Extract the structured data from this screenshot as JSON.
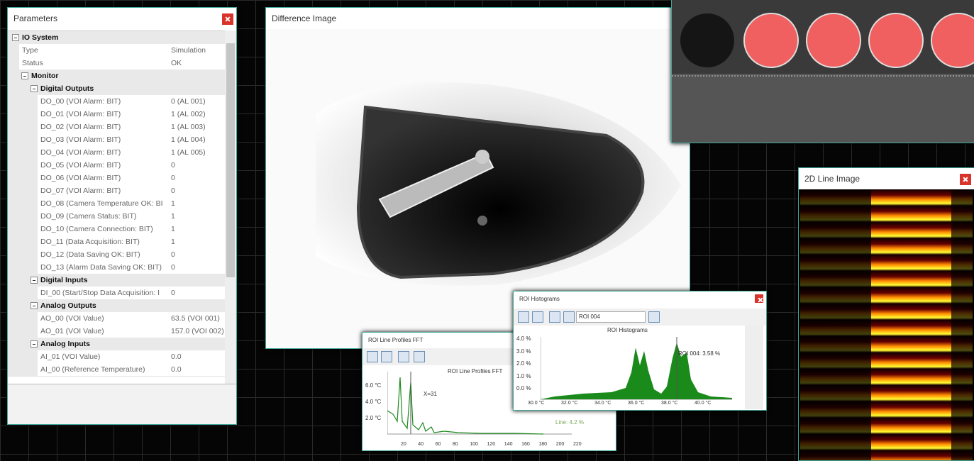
{
  "parameters": {
    "title": "Parameters",
    "tree": {
      "label": "IO System",
      "items": [
        {
          "name": "Type",
          "value": "Simulation"
        },
        {
          "name": "Status",
          "value": "OK"
        }
      ],
      "children": [
        {
          "label": "Monitor",
          "children": [
            {
              "label": "Digital Outputs",
              "items": [
                {
                  "name": "DO_00 (VOI Alarm: BIT)",
                  "value": "0 (AL 001)"
                },
                {
                  "name": "DO_01 (VOI Alarm: BIT)",
                  "value": "1 (AL 002)"
                },
                {
                  "name": "DO_02 (VOI Alarm: BIT)",
                  "value": "1 (AL 003)"
                },
                {
                  "name": "DO_03 (VOI Alarm: BIT)",
                  "value": "1 (AL 004)"
                },
                {
                  "name": "DO_04 (VOI Alarm: BIT)",
                  "value": "1 (AL 005)"
                },
                {
                  "name": "DO_05 (VOI Alarm: BIT)",
                  "value": "0"
                },
                {
                  "name": "DO_06 (VOI Alarm: BIT)",
                  "value": "0"
                },
                {
                  "name": "DO_07 (VOI Alarm: BIT)",
                  "value": "0"
                },
                {
                  "name": "DO_08 (Camera Temperature OK: BI",
                  "value": "1"
                },
                {
                  "name": "DO_09 (Camera Status: BIT)",
                  "value": "1"
                },
                {
                  "name": "DO_10 (Camera Connection: BIT)",
                  "value": "1"
                },
                {
                  "name": "DO_11 (Data Acquisition: BIT)",
                  "value": "1"
                },
                {
                  "name": "DO_12 (Data Saving OK: BIT)",
                  "value": "0"
                },
                {
                  "name": "DO_13 (Alarm Data Saving OK: BIT)",
                  "value": "0"
                }
              ]
            },
            {
              "label": "Digital Inputs",
              "items": [
                {
                  "name": "DI_00 (Start/Stop Data Acquisition: I",
                  "value": "0"
                }
              ]
            },
            {
              "label": "Analog Outputs",
              "items": [
                {
                  "name": "AO_00 (VOI Value)",
                  "value": "63.5 (VOI 001)"
                },
                {
                  "name": "AO_01 (VOI Value)",
                  "value": "157.0 (VOI 002)"
                }
              ]
            },
            {
              "label": "Analog Inputs",
              "items": [
                {
                  "name": "AI_01 (VOI Value)",
                  "value": "0.0"
                },
                {
                  "name": "AI_00 (Reference Temperature)",
                  "value": "0.0"
                }
              ]
            }
          ]
        }
      ]
    }
  },
  "difference_image": {
    "title": "Difference Image"
  },
  "line_image": {
    "title": "2D Line Image"
  },
  "histograms": {
    "title": "ROI Histograms",
    "roi": "ROI 004",
    "chart_title": "ROI Histograms",
    "annotation": "ROI 004: 3.58 %",
    "yticks": [
      "4.0 %",
      "3.0 %",
      "2.0 %",
      "1.0 %",
      "0.0 %"
    ],
    "xticks": [
      "30.0 °C",
      "32.0 °C",
      "34.0 °C",
      "36.0 °C",
      "38.0 °C",
      "40.0 °C"
    ]
  },
  "fft": {
    "title": "ROI Line Profiles FFT",
    "chart_title": "ROI Line Profiles FFT",
    "annotation": "X=31",
    "legend": "Line: 4.2 %",
    "yticks": [
      "6.0 °C",
      "4.0 °C",
      "2.0 °C"
    ],
    "xticks": [
      "20",
      "40",
      "60",
      "80",
      "100",
      "120",
      "140",
      "160",
      "180",
      "200",
      "220"
    ]
  }
}
